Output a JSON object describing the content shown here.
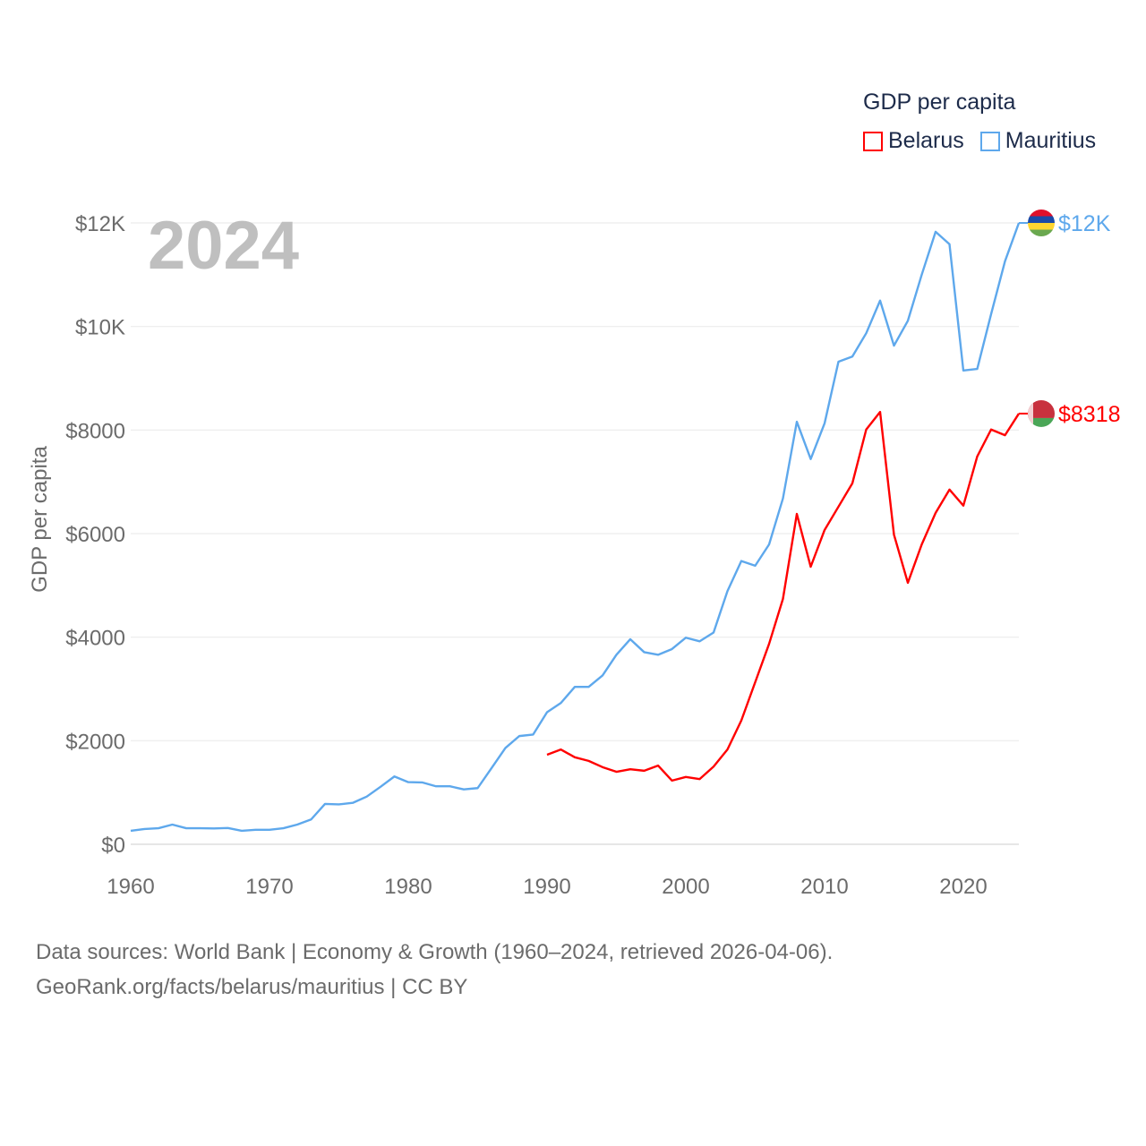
{
  "chart_data": {
    "type": "line",
    "title": "2024",
    "ylabel": "GDP per capita",
    "xlabel": "",
    "xlim": [
      1960,
      2024
    ],
    "ylim": [
      0,
      12000
    ],
    "x_ticks": [
      1960,
      1970,
      1980,
      1990,
      2000,
      2010,
      2020
    ],
    "x_tick_labels": [
      "1960",
      "1970",
      "1980",
      "1990",
      "2000",
      "2010",
      "2020"
    ],
    "y_ticks": [
      0,
      2000,
      4000,
      6000,
      8000,
      10000,
      12000
    ],
    "y_tick_labels": [
      "$0",
      "$2000",
      "$4000",
      "$6000",
      "$8000",
      "$10K",
      "$12K"
    ],
    "grid": true,
    "legend": {
      "title": "GDP per capita",
      "placement": "top-right"
    },
    "series": [
      {
        "name": "Belarus",
        "color": "#ff0000",
        "end_label": "$8318",
        "flag": "belarus-flag",
        "start_year": 1990,
        "values": [
          1730,
          1830,
          1680,
          1610,
          1490,
          1400,
          1450,
          1420,
          1520,
          1230,
          1300,
          1260,
          1500,
          1830,
          2390,
          3130,
          3870,
          4740,
          6380,
          5360,
          6070,
          6520,
          6970,
          8010,
          8350,
          5980,
          5050,
          5790,
          6400,
          6850,
          6540,
          7490,
          8010,
          7900,
          8318
        ]
      },
      {
        "name": "Mauritius",
        "color": "#5ea8ec",
        "end_label": "$12K",
        "flag": "mauritius-flag",
        "start_year": 1960,
        "values": [
          260,
          295,
          310,
          380,
          310,
          310,
          305,
          315,
          260,
          280,
          280,
          310,
          380,
          480,
          780,
          770,
          800,
          920,
          1110,
          1310,
          1200,
          1195,
          1120,
          1120,
          1060,
          1085,
          1470,
          1860,
          2090,
          2120,
          2550,
          2730,
          3040,
          3040,
          3260,
          3660,
          3960,
          3710,
          3660,
          3770,
          3990,
          3920,
          4090,
          4890,
          5470,
          5380,
          5790,
          6680,
          8160,
          7440,
          8130,
          9320,
          9420,
          9870,
          10500,
          9630,
          10110,
          11000,
          11830,
          11590,
          9150,
          9180,
          10240,
          11260,
          12000
        ]
      }
    ]
  },
  "footer": {
    "line1": "Data sources: World Bank | Economy & Growth (1960–2024, retrieved 2026-04-06).",
    "line2": "GeoRank.org/facts/belarus/mauritius | CC BY"
  }
}
